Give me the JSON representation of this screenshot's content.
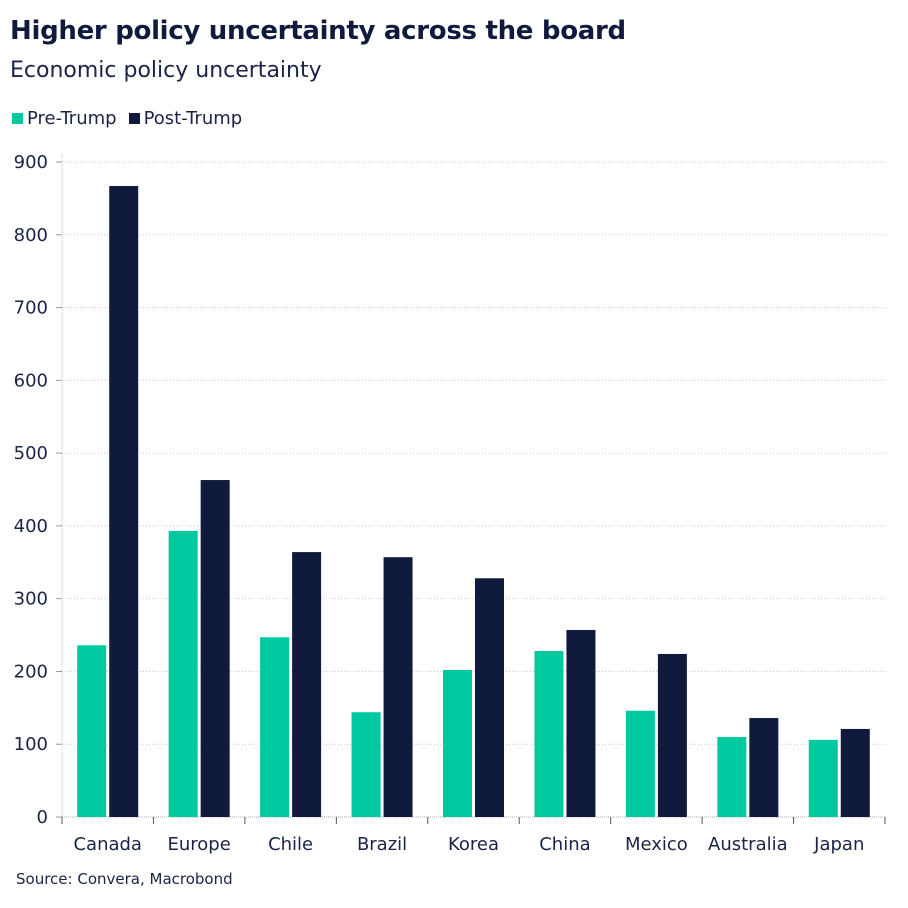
{
  "title": "Higher policy uncertainty across the board",
  "subtitle": "Economic policy uncertainty",
  "source": "Source: Convera, Macrobond",
  "chart_data": {
    "type": "bar",
    "title": "Higher policy uncertainty across the board",
    "subtitle": "Economic policy uncertainty",
    "categories": [
      "Canada",
      "Europe",
      "Chile",
      "Brazil",
      "Korea",
      "China",
      "Mexico",
      "Australia",
      "Japan"
    ],
    "series": [
      {
        "name": "Pre-Trump",
        "color": "#00c9a0",
        "values": [
          236,
          393,
          247,
          144,
          202,
          228,
          146,
          110,
          106
        ]
      },
      {
        "name": "Post-Trump",
        "color": "#0f1a3c",
        "values": [
          867,
          463,
          364,
          357,
          328,
          257,
          224,
          136,
          121
        ]
      }
    ],
    "yticks": [
      0,
      100,
      200,
      300,
      400,
      500,
      600,
      700,
      800,
      900
    ],
    "ylim": [
      0,
      900
    ],
    "grid": true,
    "legend": "top-left"
  }
}
